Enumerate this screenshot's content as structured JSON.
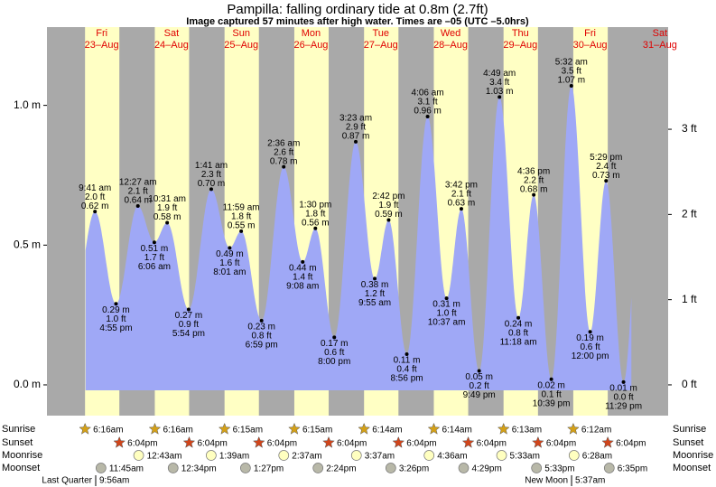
{
  "chart_data": {
    "type": "tide",
    "title": "Pampilla: falling  ordinary tide at 0.8m (2.7ft)",
    "subtitle": "Image captured 57 minutes after high water. Times are –05 (UTC –5.0hrs)",
    "ylim": [
      -0.11,
      1.28
    ],
    "yticks": [
      {
        "value": 0,
        "label": "0.0 m"
      },
      {
        "value": 0.5,
        "label": "0.5 m"
      },
      {
        "value": 1,
        "label": "1.0 m"
      }
    ],
    "y2lim": [
      -0.361,
      4.199
    ],
    "y2ticks": [
      {
        "value": 0,
        "label": "0 ft"
      },
      {
        "value": 1,
        "label": "1 ft"
      },
      {
        "value": 2,
        "label": "2 ft"
      },
      {
        "value": 3,
        "label": "3 ft"
      }
    ],
    "colors": {
      "night": "#a9a9a9",
      "day": "#ffffc4",
      "tide": "#9fa8f6",
      "date": "#e00000"
    },
    "row_labels": {
      "sunrise": "Sunrise",
      "sunset": "Sunset",
      "moonrise": "Moonrise",
      "moonset": "Moonset"
    },
    "days": [
      {
        "weekday": "Fri",
        "date": "23–Aug",
        "sunrise": "6:16am",
        "sunset": "6:04pm",
        "moonrise": null,
        "moonset": "11:45am",
        "moon_phase": {
          "name": "Last Quarter",
          "time": "9:56am"
        },
        "tides": [
          {
            "time": "9:41 am",
            "height": 0.62,
            "height_label": "0.62 m",
            "feet_label": "2.0 ft"
          },
          {
            "time": "4:55 pm",
            "height": 0.29,
            "height_label": "0.29 m",
            "feet_label": "1.0 ft"
          }
        ]
      },
      {
        "weekday": "Sat",
        "date": "24–Aug",
        "sunrise": "6:16am",
        "sunset": "6:04pm",
        "moonrise": "12:43am",
        "moonset": "12:34pm",
        "moon_phase": null,
        "tides": [
          {
            "time": "12:27 am",
            "height": 0.64,
            "height_label": "0.64 m",
            "feet_label": "2.1 ft"
          },
          {
            "time": "6:06 am",
            "height": 0.51,
            "height_label": "0.51 m",
            "feet_label": "1.7 ft"
          },
          {
            "time": "10:31 am",
            "height": 0.58,
            "height_label": "0.58 m",
            "feet_label": "1.9 ft"
          },
          {
            "time": "5:54 pm",
            "height": 0.27,
            "height_label": "0.27 m",
            "feet_label": "0.9 ft"
          }
        ]
      },
      {
        "weekday": "Sun",
        "date": "25–Aug",
        "sunrise": "6:15am",
        "sunset": "6:04pm",
        "moonrise": "1:39am",
        "moonset": "1:27pm",
        "moon_phase": null,
        "tides": [
          {
            "time": "1:41 am",
            "height": 0.7,
            "height_label": "0.70 m",
            "feet_label": "2.3 ft"
          },
          {
            "time": "8:01 am",
            "height": 0.49,
            "height_label": "0.49 m",
            "feet_label": "1.6 ft"
          },
          {
            "time": "11:59 am",
            "height": 0.55,
            "height_label": "0.55 m",
            "feet_label": "1.8 ft"
          },
          {
            "time": "6:59 pm",
            "height": 0.23,
            "height_label": "0.23 m",
            "feet_label": "0.8 ft"
          }
        ]
      },
      {
        "weekday": "Mon",
        "date": "26–Aug",
        "sunrise": "6:15am",
        "sunset": "6:04pm",
        "moonrise": "2:37am",
        "moonset": "2:24pm",
        "moon_phase": null,
        "tides": [
          {
            "time": "2:36 am",
            "height": 0.78,
            "height_label": "0.78 m",
            "feet_label": "2.6 ft"
          },
          {
            "time": "9:08 am",
            "height": 0.44,
            "height_label": "0.44 m",
            "feet_label": "1.4 ft"
          },
          {
            "time": "1:30 pm",
            "height": 0.56,
            "height_label": "0.56 m",
            "feet_label": "1.8 ft"
          },
          {
            "time": "8:00 pm",
            "height": 0.17,
            "height_label": "0.17 m",
            "feet_label": "0.6 ft"
          }
        ]
      },
      {
        "weekday": "Tue",
        "date": "27–Aug",
        "sunrise": "6:14am",
        "sunset": "6:04pm",
        "moonrise": "3:37am",
        "moonset": "3:26pm",
        "moon_phase": null,
        "tides": [
          {
            "time": "3:23 am",
            "height": 0.87,
            "height_label": "0.87 m",
            "feet_label": "2.9 ft"
          },
          {
            "time": "9:55 am",
            "height": 0.38,
            "height_label": "0.38 m",
            "feet_label": "1.2 ft"
          },
          {
            "time": "2:42 pm",
            "height": 0.59,
            "height_label": "0.59 m",
            "feet_label": "1.9 ft"
          },
          {
            "time": "8:56 pm",
            "height": 0.11,
            "height_label": "0.11 m",
            "feet_label": "0.4 ft"
          }
        ]
      },
      {
        "weekday": "Wed",
        "date": "28–Aug",
        "sunrise": "6:14am",
        "sunset": "6:04pm",
        "moonrise": "4:36am",
        "moonset": "4:29pm",
        "moon_phase": null,
        "tides": [
          {
            "time": "4:06 am",
            "height": 0.96,
            "height_label": "0.96 m",
            "feet_label": "3.1 ft"
          },
          {
            "time": "10:37 am",
            "height": 0.31,
            "height_label": "0.31 m",
            "feet_label": "1.0 ft"
          },
          {
            "time": "3:42 pm",
            "height": 0.63,
            "height_label": "0.63 m",
            "feet_label": "2.1 ft"
          },
          {
            "time": "9:49 pm",
            "height": 0.05,
            "height_label": "0.05 m",
            "feet_label": "0.2 ft"
          }
        ]
      },
      {
        "weekday": "Thu",
        "date": "29–Aug",
        "sunrise": "6:13am",
        "sunset": "6:04pm",
        "moonrise": "5:33am",
        "moonset": "5:33pm",
        "moon_phase": null,
        "tides": [
          {
            "time": "4:49 am",
            "height": 1.03,
            "height_label": "1.03 m",
            "feet_label": "3.4 ft"
          },
          {
            "time": "11:18 am",
            "height": 0.24,
            "height_label": "0.24 m",
            "feet_label": "0.8 ft"
          },
          {
            "time": "4:36 pm",
            "height": 0.68,
            "height_label": "0.68 m",
            "feet_label": "2.2 ft"
          },
          {
            "time": "10:39 pm",
            "height": 0.02,
            "height_label": "0.02 m",
            "feet_label": "0.1 ft"
          }
        ]
      },
      {
        "weekday": "Fri",
        "date": "30–Aug",
        "sunrise": "6:12am",
        "sunset": "6:04pm",
        "moonrise": "6:28am",
        "moonset": "6:35pm",
        "moon_phase": {
          "name": "New Moon",
          "time": "5:37am"
        },
        "tides": [
          {
            "time": "5:32 am",
            "height": 1.07,
            "height_label": "1.07 m",
            "feet_label": "3.5 ft"
          },
          {
            "time": "12:00 pm",
            "height": 0.19,
            "height_label": "0.19 m",
            "feet_label": "0.6 ft"
          },
          {
            "time": "5:29 pm",
            "height": 0.73,
            "height_label": "0.73 m",
            "feet_label": "2.4 ft"
          },
          {
            "time": "11:29 pm",
            "height": 0.01,
            "height_label": "0.01 m",
            "feet_label": "0.0 ft"
          }
        ]
      },
      {
        "weekday": "Sat",
        "date": "31–Aug",
        "sunrise": null,
        "sunset": null,
        "moonrise": null,
        "moonset": null,
        "moon_phase": null,
        "tides": []
      }
    ]
  }
}
